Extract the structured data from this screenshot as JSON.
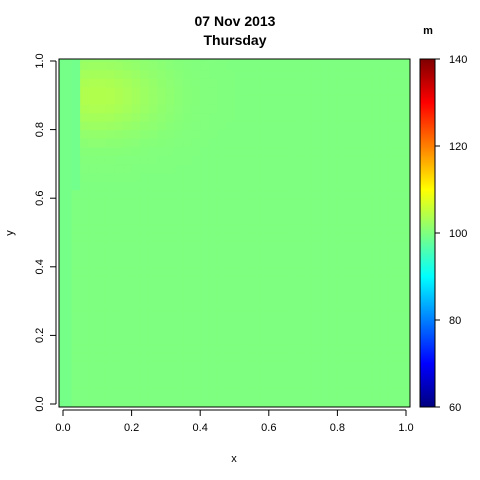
{
  "chart_data": {
    "type": "heatmap",
    "title": "07 Nov 2013",
    "subtitle": "Thursday",
    "xlabel": "x",
    "ylabel": "y",
    "xlim": [
      0,
      1
    ],
    "ylim": [
      0,
      1
    ],
    "x_ticks": [
      "0.0",
      "0.2",
      "0.4",
      "0.6",
      "0.8",
      "1.0"
    ],
    "y_ticks": [
      "0.0",
      "0.2",
      "0.4",
      "0.6",
      "0.8",
      "1.0"
    ],
    "colorbar": {
      "unit": "m",
      "min": 60,
      "max": 140,
      "ticks": [
        "60",
        "80",
        "100",
        "120",
        "140"
      ],
      "palette": [
        "#00007F",
        "#0000FF",
        "#007FFF",
        "#00FFFF",
        "#7FFF7F",
        "#FFFF00",
        "#FF7F00",
        "#FF0000",
        "#7F0000"
      ]
    },
    "field": {
      "background_value": 100,
      "boundary_layer_value": 99,
      "peak_value": 104,
      "peak_location": [
        0.1,
        0.9
      ],
      "grid_resolution": 0.025
    }
  }
}
